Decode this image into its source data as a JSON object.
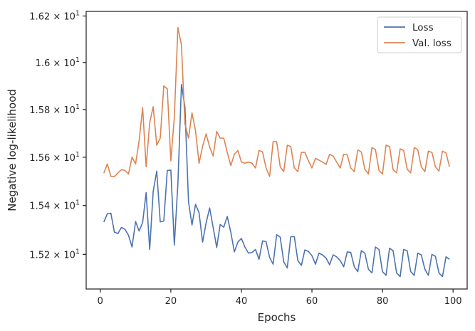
{
  "chart_data": {
    "type": "line",
    "xlabel": "Epochs",
    "ylabel": "Negative log-likelihood",
    "xlim": [
      -4,
      104
    ],
    "ylim": [
      15.06,
      16.22
    ],
    "y_scale": "log",
    "grid": false,
    "legend_position": "top-right",
    "x_ticks": [
      0,
      20,
      40,
      60,
      80,
      100
    ],
    "y_ticks": [
      {
        "value": 15.2,
        "mantissa": "1.52",
        "base": "10",
        "exp": "1"
      },
      {
        "value": 15.4,
        "mantissa": "1.54",
        "base": "10",
        "exp": "1"
      },
      {
        "value": 15.6,
        "mantissa": "1.56",
        "base": "10",
        "exp": "1"
      },
      {
        "value": 15.8,
        "mantissa": "1.58",
        "base": "10",
        "exp": "1"
      },
      {
        "value": 16.0,
        "mantissa": "1.6",
        "base": "10",
        "exp": "1"
      },
      {
        "value": 16.2,
        "mantissa": "1.62",
        "base": "10",
        "exp": "1"
      }
    ],
    "x": [
      1,
      2,
      3,
      4,
      5,
      6,
      7,
      8,
      9,
      10,
      11,
      12,
      13,
      14,
      15,
      16,
      17,
      18,
      19,
      20,
      21,
      22,
      23,
      24,
      25,
      26,
      27,
      28,
      29,
      30,
      31,
      32,
      33,
      34,
      35,
      36,
      37,
      38,
      39,
      40,
      41,
      42,
      43,
      44,
      45,
      46,
      47,
      48,
      49,
      50,
      51,
      52,
      53,
      54,
      55,
      56,
      57,
      58,
      59,
      60,
      61,
      62,
      63,
      64,
      65,
      66,
      67,
      68,
      69,
      70,
      71,
      72,
      73,
      74,
      75,
      76,
      77,
      78,
      79,
      80,
      81,
      82,
      83,
      84,
      85,
      86,
      87,
      88,
      89,
      90,
      91,
      92,
      93,
      94,
      95,
      96,
      97,
      98,
      99
    ],
    "series": [
      {
        "name": "Loss",
        "color": "#4c72b0",
        "values": [
          15.332,
          15.366,
          15.368,
          15.291,
          15.285,
          15.31,
          15.302,
          15.278,
          15.23,
          15.334,
          15.295,
          15.33,
          15.453,
          15.22,
          15.458,
          15.542,
          15.333,
          15.336,
          15.545,
          15.546,
          15.238,
          15.49,
          15.906,
          15.81,
          15.415,
          15.32,
          15.405,
          15.37,
          15.25,
          15.328,
          15.39,
          15.31,
          15.228,
          15.322,
          15.311,
          15.355,
          15.29,
          15.21,
          15.25,
          15.265,
          15.23,
          15.205,
          15.208,
          15.22,
          15.18,
          15.255,
          15.252,
          15.188,
          15.16,
          15.28,
          15.27,
          15.17,
          15.145,
          15.272,
          15.272,
          15.175,
          15.155,
          15.218,
          15.212,
          15.195,
          15.16,
          15.205,
          15.198,
          15.185,
          15.158,
          15.198,
          15.19,
          15.175,
          15.15,
          15.21,
          15.208,
          15.15,
          15.13,
          15.215,
          15.205,
          15.14,
          15.125,
          15.23,
          15.22,
          15.13,
          15.115,
          15.225,
          15.215,
          15.125,
          15.11,
          15.22,
          15.215,
          15.13,
          15.115,
          15.205,
          15.198,
          15.14,
          15.115,
          15.2,
          15.192,
          15.125,
          15.11,
          15.19,
          15.18
        ]
      },
      {
        "name": "Val. loss",
        "color": "#dd8452",
        "values": [
          15.534,
          15.572,
          15.52,
          15.519,
          15.535,
          15.548,
          15.545,
          15.53,
          15.6,
          15.572,
          15.668,
          15.808,
          15.56,
          15.745,
          15.812,
          15.65,
          15.68,
          15.9,
          15.888,
          15.585,
          15.768,
          16.15,
          16.075,
          15.74,
          15.68,
          15.786,
          15.71,
          15.575,
          15.645,
          15.698,
          15.642,
          15.605,
          15.708,
          15.68,
          15.68,
          15.62,
          15.565,
          15.612,
          15.628,
          15.58,
          15.575,
          15.58,
          15.575,
          15.555,
          15.628,
          15.622,
          15.555,
          15.52,
          15.665,
          15.665,
          15.56,
          15.54,
          15.65,
          15.645,
          15.555,
          15.54,
          15.62,
          15.62,
          15.585,
          15.555,
          15.595,
          15.588,
          15.58,
          15.57,
          15.612,
          15.605,
          15.58,
          15.555,
          15.612,
          15.61,
          15.555,
          15.54,
          15.63,
          15.622,
          15.55,
          15.53,
          15.64,
          15.632,
          15.545,
          15.53,
          15.65,
          15.645,
          15.548,
          15.535,
          15.635,
          15.628,
          15.55,
          15.535,
          15.64,
          15.632,
          15.56,
          15.54,
          15.625,
          15.62,
          15.56,
          15.542,
          15.625,
          15.618,
          15.56
        ]
      }
    ]
  }
}
